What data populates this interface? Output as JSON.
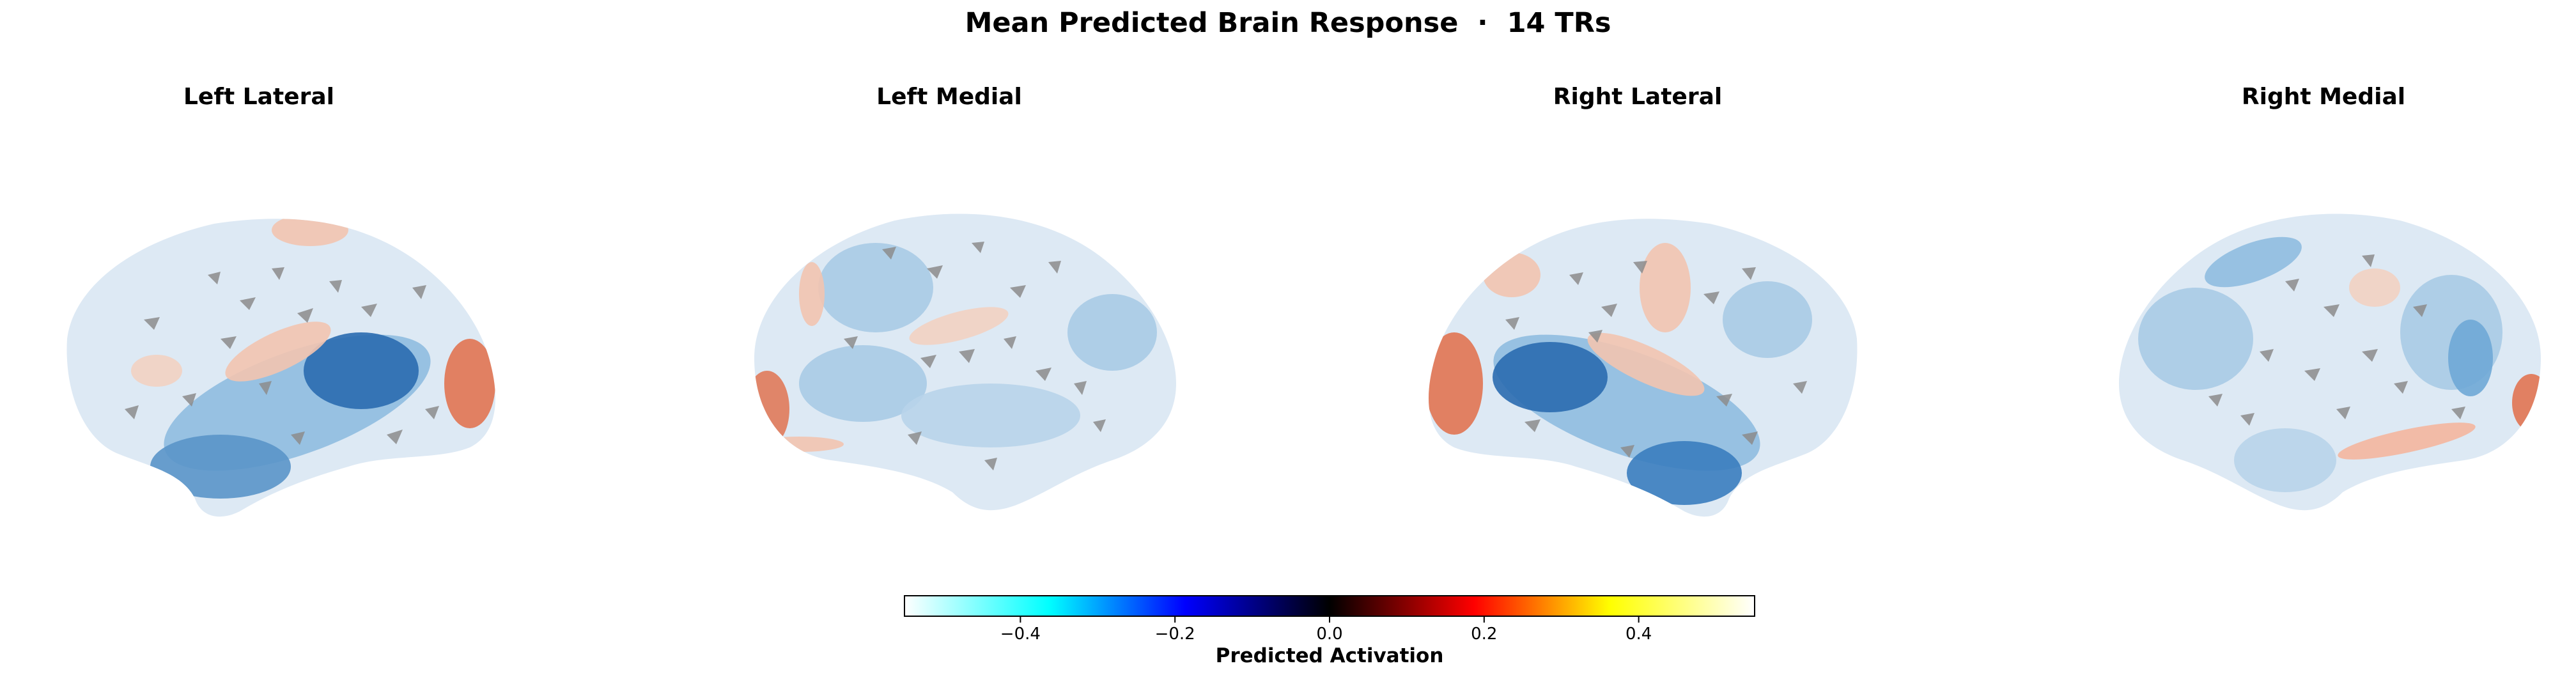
{
  "title": "Mean Predicted Brain Response  ·  14 TRs",
  "panels": [
    {
      "title": "Left Lateral"
    },
    {
      "title": "Left Medial"
    },
    {
      "title": "Right Lateral"
    },
    {
      "title": "Right Medial"
    }
  ],
  "colorbar": {
    "label": "Predicted Activation",
    "range": [
      -0.55,
      0.55
    ],
    "ticks": [
      "−0.4",
      "−0.2",
      "0.0",
      "0.2",
      "0.4"
    ],
    "tick_values": [
      -0.4,
      -0.2,
      0.0,
      0.2,
      0.4
    ],
    "colormap_stops": [
      "#ffffff",
      "#00ffff",
      "#0000ff",
      "#000000",
      "#ff0000",
      "#ffff00",
      "#ffffff"
    ]
  },
  "colors": {
    "negative": "#6fa8d6",
    "strong_negative": "#2a6cb0",
    "neutral": "#dde9f4",
    "positive": "#f2b8a2",
    "strong_positive": "#e07a5a",
    "masked": "#8c8c8c"
  }
}
